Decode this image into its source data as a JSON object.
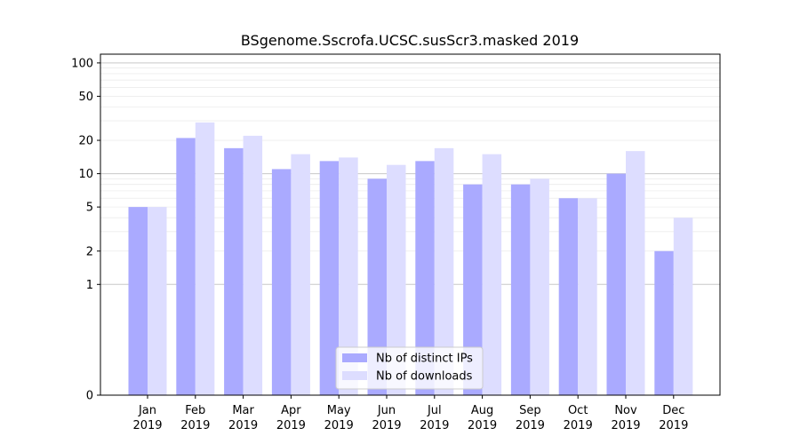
{
  "chart_data": {
    "type": "bar",
    "title": "BSgenome.Sscrofa.UCSC.susScr3.masked 2019",
    "xlabel": "",
    "ylabel": "",
    "y_scale": "symlog",
    "ylim": [
      0,
      120
    ],
    "categories": [
      [
        "Jan",
        "2019"
      ],
      [
        "Feb",
        "2019"
      ],
      [
        "Mar",
        "2019"
      ],
      [
        "Apr",
        "2019"
      ],
      [
        "May",
        "2019"
      ],
      [
        "Jun",
        "2019"
      ],
      [
        "Jul",
        "2019"
      ],
      [
        "Aug",
        "2019"
      ],
      [
        "Sep",
        "2019"
      ],
      [
        "Oct",
        "2019"
      ],
      [
        "Nov",
        "2019"
      ],
      [
        "Dec",
        "2019"
      ]
    ],
    "y_ticks": [
      {
        "value": 0,
        "label": "0"
      },
      {
        "value": 1,
        "label": "1"
      },
      {
        "value": 2,
        "label": "2"
      },
      {
        "value": 5,
        "label": "5"
      },
      {
        "value": 10,
        "label": "10"
      },
      {
        "value": 20,
        "label": "20"
      },
      {
        "value": 50,
        "label": "50"
      },
      {
        "value": 100,
        "label": "100"
      }
    ],
    "grid": true,
    "legend_position": "bottom-center",
    "series": [
      {
        "name": "Nb of distinct IPs",
        "color": "#aaaaff",
        "values": [
          5,
          21,
          17,
          11,
          13,
          9,
          13,
          8,
          8,
          6,
          10,
          2
        ]
      },
      {
        "name": "Nb of downloads",
        "color": "#ddddff",
        "values": [
          5,
          29,
          22,
          15,
          14,
          12,
          17,
          15,
          9,
          6,
          16,
          4
        ]
      }
    ]
  }
}
